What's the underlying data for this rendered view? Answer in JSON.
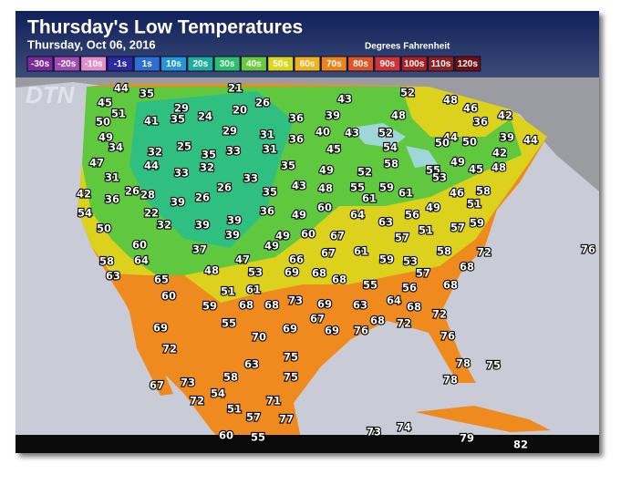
{
  "header": {
    "title": "Thursday's Low Temperatures",
    "date": "Thursday, Oct 06, 2016",
    "units": "Degrees Fahrenheit",
    "logo": "DTN"
  },
  "legend": [
    {
      "label": "-30s",
      "color": "#7b2a9c"
    },
    {
      "label": "-20s",
      "color": "#a24bb3"
    },
    {
      "label": "-10s",
      "color": "#e58fc8"
    },
    {
      "label": "-1s",
      "color": "#2b2aa0"
    },
    {
      "label": "1s",
      "color": "#2f6fd3"
    },
    {
      "label": "10s",
      "color": "#2596d8"
    },
    {
      "label": "20s",
      "color": "#1fae9b"
    },
    {
      "label": "30s",
      "color": "#2cc06a"
    },
    {
      "label": "40s",
      "color": "#66cc3a"
    },
    {
      "label": "50s",
      "color": "#d9d81f"
    },
    {
      "label": "60s",
      "color": "#f0b21f"
    },
    {
      "label": "70s",
      "color": "#ef8316"
    },
    {
      "label": "80s",
      "color": "#e05523"
    },
    {
      "label": "90s",
      "color": "#cf3434"
    },
    {
      "label": "100s",
      "color": "#b02222"
    },
    {
      "label": "110s",
      "color": "#8e1f1f"
    },
    {
      "label": "120s",
      "color": "#6e1010"
    }
  ],
  "temperatures": [
    44,
    35,
    21,
    52,
    48,
    46,
    42,
    45,
    29,
    20,
    26,
    43,
    51,
    41,
    35,
    24,
    36,
    39,
    48,
    36,
    50,
    49,
    29,
    31,
    40,
    43,
    52,
    44,
    50,
    39,
    44,
    34,
    32,
    25,
    35,
    33,
    31,
    36,
    45,
    54,
    50,
    42,
    47,
    44,
    33,
    32,
    35,
    49,
    52,
    58,
    55,
    53,
    49,
    45,
    48,
    31,
    33,
    43,
    48,
    55,
    59,
    61,
    46,
    58,
    42,
    36,
    26,
    28,
    39,
    26,
    26,
    35,
    61,
    51,
    54,
    22,
    36,
    49,
    60,
    64,
    63,
    56,
    49,
    59,
    50,
    32,
    39,
    39,
    39,
    49,
    60,
    67,
    57,
    51,
    57,
    60,
    37,
    49,
    66,
    67,
    61,
    58,
    72,
    76,
    58,
    64,
    65,
    47,
    48,
    53,
    69,
    68,
    68,
    59,
    53,
    57,
    68,
    63,
    60,
    51,
    61,
    55,
    56,
    68,
    59,
    68,
    68,
    73,
    69,
    63,
    64,
    68,
    55,
    69,
    69,
    67,
    69,
    76,
    68,
    72,
    72,
    70,
    72,
    76,
    75,
    78,
    75,
    63,
    58,
    73,
    67,
    75,
    78,
    54,
    72,
    71,
    51,
    57,
    77,
    73,
    74,
    60,
    55,
    79,
    82
  ]
}
